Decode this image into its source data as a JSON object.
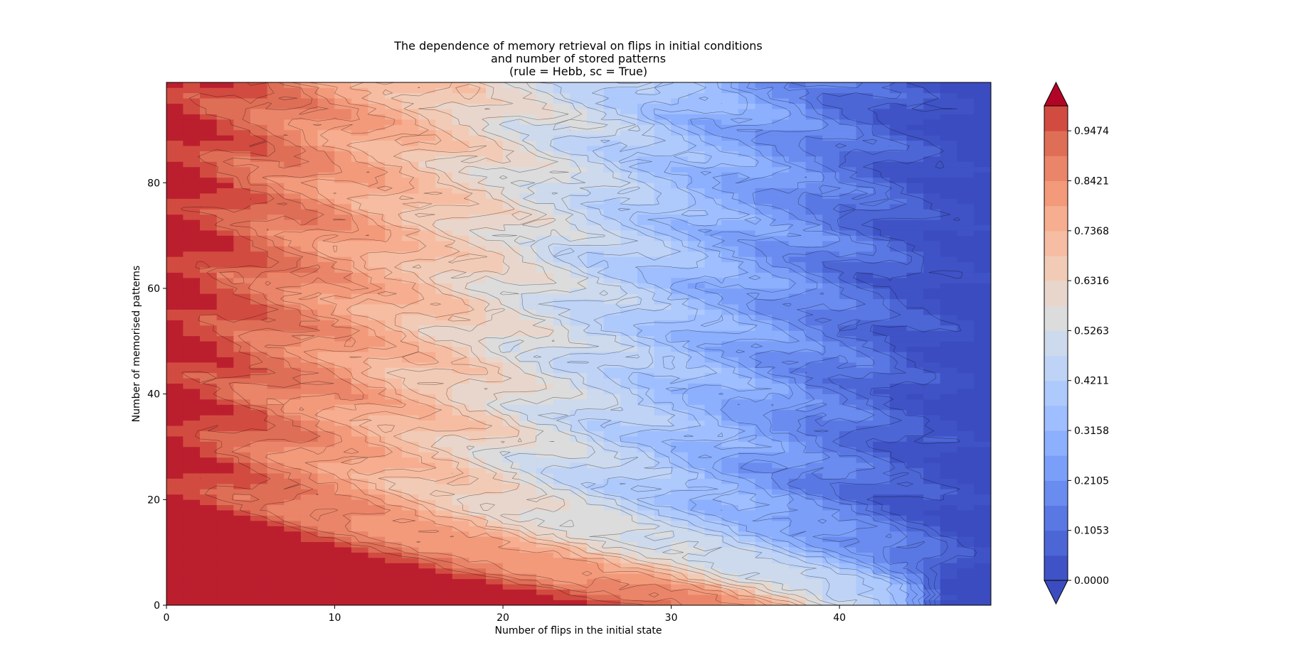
{
  "chart_data": {
    "type": "heatmap",
    "subtype": "filled-contour",
    "title_lines": [
      "The dependence of memory retrieval on flips in initial conditions",
      "and number of stored patterns",
      "(rule = Hebb, sc = True)"
    ],
    "xlabel": "Number of flips in the initial state",
    "ylabel": "Number of memorised patterns",
    "xlim": [
      0,
      49
    ],
    "ylim": [
      0,
      99
    ],
    "x_ticks": [
      0,
      10,
      20,
      30,
      40
    ],
    "x_tick_labels": [
      "0",
      "10",
      "20",
      "30",
      "40"
    ],
    "y_ticks": [
      0,
      20,
      40,
      60,
      80
    ],
    "y_tick_labels": [
      "0",
      "20",
      "40",
      "60",
      "80"
    ],
    "colormap": "coolwarm",
    "value_range": [
      0.0,
      1.0
    ],
    "colorbar_extend": "both",
    "colorbar_ticks": [
      0.0,
      0.1053,
      0.2105,
      0.3158,
      0.4211,
      0.5263,
      0.6316,
      0.7368,
      0.8421,
      0.9474
    ],
    "colorbar_tick_labels": [
      "0.0000",
      "0.1053",
      "0.2105",
      "0.3158",
      "0.4211",
      "0.5263",
      "0.6316",
      "0.7368",
      "0.8421",
      "0.9474"
    ],
    "levels": [
      0.0,
      0.0526,
      0.1053,
      0.1579,
      0.2105,
      0.2632,
      0.3158,
      0.3684,
      0.4211,
      0.4737,
      0.5263,
      0.5789,
      0.6316,
      0.6842,
      0.7368,
      0.7895,
      0.8421,
      0.8947,
      0.9474,
      1.0
    ],
    "level_colors": [
      "#3f53c6",
      "#4c66d6",
      "#5a78e4",
      "#6a8bef",
      "#7b9ff9",
      "#8caffe",
      "#9ebeff",
      "#aec9fc",
      "#bfd3f6",
      "#cdd9ec",
      "#dcdcdc",
      "#e8d6cc",
      "#f2cbb7",
      "#f6bda2",
      "#f7ad8f",
      "#f39a7b",
      "#ea8569",
      "#df6e56",
      "#d24b40",
      "#bb1f2e"
    ],
    "extend_min_color": "#3b4cc0",
    "extend_max_color": "#b40426",
    "contour_line_color": "#000000",
    "grid": false,
    "description_of_values": "Retrieval ratio decreases roughly linearly from ~1.0 at 0 flips to ~0.0 at 49 flips; at small numbers of stored patterns (below ~20) values stay near 1.0 up to ~35-45 flips, with a sharp transition at the highest flips."
  }
}
